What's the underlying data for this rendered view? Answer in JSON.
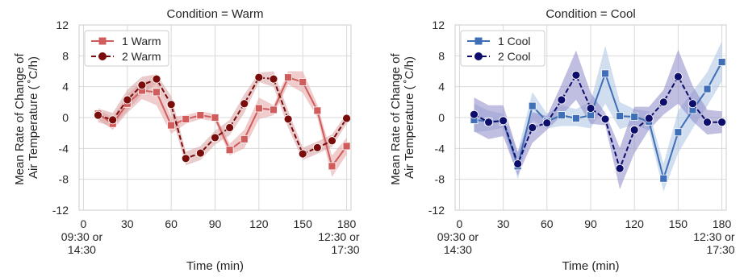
{
  "chart_data": [
    {
      "type": "line",
      "title": "Condition =  Warm",
      "xlabel": "Time (min)",
      "ylabel_lines": [
        "Mean Rate of Change of",
        "Air Temperature ( ˚C/h)"
      ],
      "xlim": [
        -3,
        183
      ],
      "ylim": [
        -12,
        12
      ],
      "xticks": [
        0,
        30,
        60,
        90,
        120,
        150,
        180
      ],
      "xtick_labels": [
        [
          "0",
          "09:30 or",
          "14:30"
        ],
        [
          "30"
        ],
        [
          "60"
        ],
        [
          "90"
        ],
        [
          "120"
        ],
        [
          "150"
        ],
        [
          "180",
          "12:30 or",
          "17:30"
        ]
      ],
      "yticks": [
        -12,
        -8,
        -4,
        0,
        4,
        8,
        12
      ],
      "grid": true,
      "legend_position": "top-left",
      "x": [
        10,
        20,
        30,
        40,
        50,
        60,
        70,
        80,
        90,
        100,
        110,
        120,
        130,
        140,
        150,
        160,
        170,
        180
      ],
      "series": [
        {
          "name": "1 Warm",
          "style": "solid",
          "marker": "square",
          "color": "#d05c5c",
          "band_color": "#e4a3a3",
          "values": [
            0.5,
            -0.8,
            1.8,
            3.5,
            3.3,
            -1.0,
            -0.2,
            0.3,
            0.0,
            -4.2,
            -2.8,
            1.2,
            1.0,
            5.2,
            4.6,
            0.9,
            -6.3,
            -3.7
          ],
          "ci_low": [
            -0.2,
            -1.6,
            0.6,
            2.4,
            1.6,
            -2.1,
            -0.8,
            -0.2,
            -0.5,
            -4.9,
            -4.0,
            -0.2,
            0.3,
            4.3,
            3.2,
            0.0,
            -7.7,
            -4.8
          ],
          "ci_high": [
            1.1,
            0.0,
            3.0,
            4.7,
            4.8,
            0.1,
            0.3,
            0.8,
            0.5,
            -3.4,
            -1.6,
            2.6,
            1.6,
            6.0,
            6.0,
            1.7,
            -4.9,
            -2.6
          ]
        },
        {
          "name": "2 Warm",
          "style": "dashed",
          "marker": "circle",
          "color": "#7a0c0c",
          "band_color": "#d9a0a0",
          "values": [
            0.3,
            -0.3,
            2.3,
            4.2,
            5.0,
            1.7,
            -5.3,
            -4.6,
            -2.6,
            -1.3,
            1.8,
            5.2,
            5.0,
            -0.2,
            -4.7,
            -3.9,
            -3.0,
            -0.1
          ],
          "ci_low": [
            -0.6,
            -1.2,
            0.9,
            3.0,
            4.4,
            0.5,
            -6.2,
            -5.5,
            -3.5,
            -2.3,
            0.6,
            4.6,
            4.0,
            -1.3,
            -5.5,
            -4.7,
            -3.8,
            -0.8
          ],
          "ci_high": [
            1.2,
            0.6,
            3.6,
            5.3,
            5.6,
            2.8,
            -4.4,
            -3.7,
            -1.7,
            -0.3,
            3.0,
            5.8,
            6.0,
            0.9,
            -3.9,
            -3.1,
            -2.2,
            0.6
          ]
        }
      ]
    },
    {
      "type": "line",
      "title": "Condition =  Cool",
      "xlabel": "Time (min)",
      "ylabel_lines": [
        "Mean Rate of Change of",
        "Air Temperature ( ˚C/h)"
      ],
      "xlim": [
        -3,
        183
      ],
      "ylim": [
        -12,
        12
      ],
      "xticks": [
        0,
        30,
        60,
        90,
        120,
        150,
        180
      ],
      "xtick_labels": [
        [
          "0",
          "09:30 or",
          "14:30"
        ],
        [
          "30"
        ],
        [
          "60"
        ],
        [
          "90"
        ],
        [
          "120"
        ],
        [
          "150"
        ],
        [
          "180",
          "12:30 or",
          "17:30"
        ]
      ],
      "yticks": [
        -12,
        -8,
        -4,
        0,
        4,
        8,
        12
      ],
      "grid": true,
      "legend_position": "top-left",
      "x": [
        10,
        20,
        30,
        40,
        50,
        60,
        70,
        80,
        90,
        100,
        110,
        120,
        130,
        140,
        150,
        160,
        170,
        180
      ],
      "series": [
        {
          "name": "1 Cool",
          "style": "solid",
          "marker": "square",
          "color": "#3f6fb6",
          "band_color": "#a9c2e4",
          "values": [
            -0.3,
            -0.5,
            -0.5,
            -6.3,
            1.5,
            -0.5,
            0.3,
            -0.1,
            0.3,
            5.7,
            0.2,
            0.1,
            -0.5,
            -7.9,
            -1.9,
            1.0,
            3.7,
            7.2
          ],
          "ci_low": [
            -1.9,
            -1.7,
            -1.3,
            -8.0,
            -0.3,
            -1.4,
            -1.1,
            -1.1,
            -1.4,
            1.8,
            -1.5,
            -0.9,
            -1.7,
            -9.6,
            -4.6,
            -1.4,
            1.5,
            4.7
          ],
          "ci_high": [
            1.8,
            0.9,
            0.5,
            -4.4,
            3.3,
            0.5,
            1.6,
            1.1,
            2.1,
            9.3,
            2.0,
            1.1,
            0.8,
            -6.0,
            0.9,
            3.4,
            5.9,
            9.9
          ]
        },
        {
          "name": "2 Cool",
          "style": "dashed",
          "marker": "circle",
          "color": "#0d0d6b",
          "band_color": "#8c88c8",
          "values": [
            0.4,
            -0.6,
            -0.4,
            -6.0,
            -1.3,
            -0.7,
            2.3,
            5.5,
            1.2,
            -0.2,
            -6.6,
            -1.6,
            -0.1,
            2.0,
            5.3,
            1.8,
            -0.6,
            -0.6
          ],
          "ci_low": [
            -1.8,
            -2.8,
            -2.4,
            -7.5,
            -3.3,
            -1.6,
            0.3,
            2.3,
            -0.8,
            -1.0,
            -9.3,
            -4.6,
            -1.6,
            0.4,
            1.8,
            -0.5,
            -2.2,
            -2.0
          ],
          "ci_high": [
            2.6,
            1.6,
            1.6,
            -4.5,
            0.7,
            0.2,
            4.3,
            8.7,
            3.2,
            0.6,
            -3.9,
            1.4,
            1.4,
            3.6,
            8.8,
            4.1,
            1.0,
            0.8
          ]
        }
      ]
    }
  ]
}
